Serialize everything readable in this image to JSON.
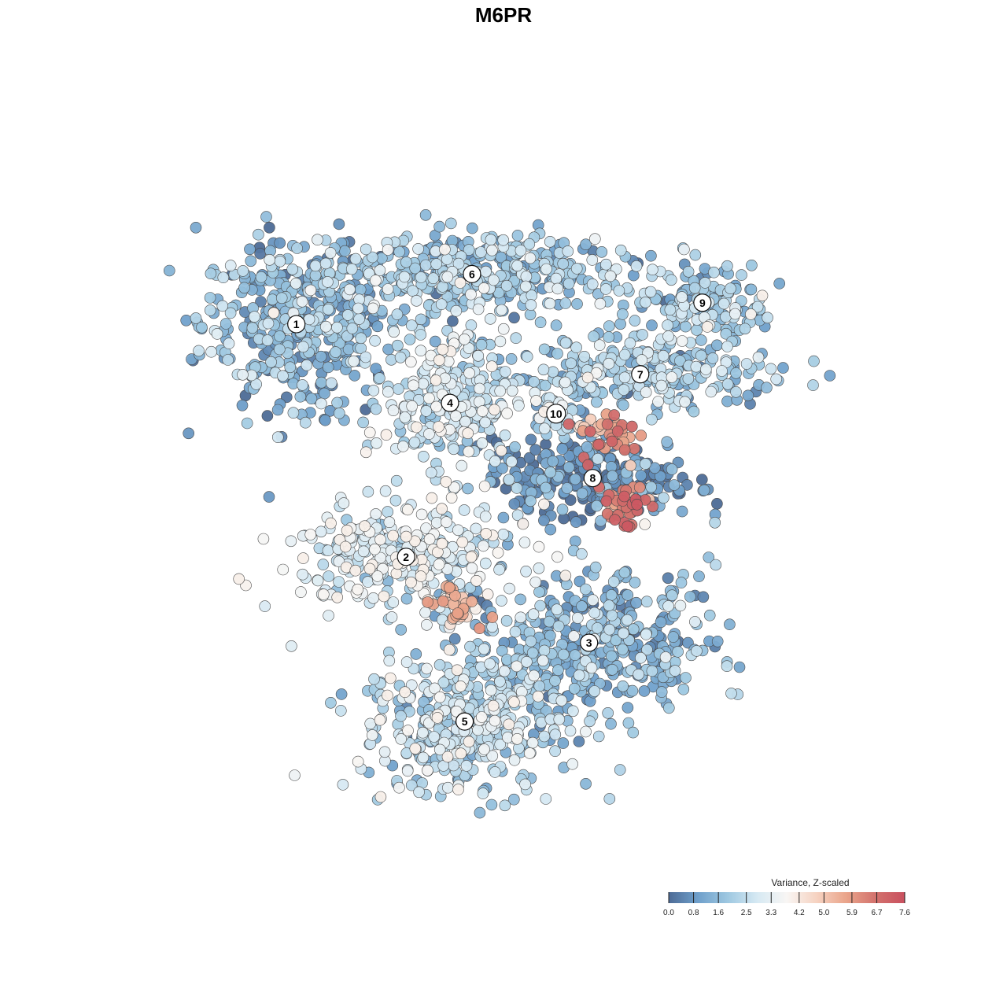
{
  "chart_data": {
    "type": "scatter",
    "title": "M6PR",
    "xlabel": "",
    "ylabel": "",
    "grid": false,
    "legend": {
      "title": "Variance, Z-scaled",
      "position": "bottom-right",
      "ticks": [
        "0.0",
        "0.8",
        "1.6",
        "2.5",
        "3.3",
        "4.2",
        "5.0",
        "5.9",
        "6.7",
        "7.6"
      ],
      "range": [
        0.0,
        7.6
      ],
      "colors": [
        "#4d6b96",
        "#6fa0cb",
        "#9ec8e1",
        "#d6e9f3",
        "#f8f6f4",
        "#f6d3c2",
        "#eaa58b",
        "#d3726d",
        "#c9505f"
      ]
    },
    "clusters": [
      {
        "label": "1",
        "x": -6.2,
        "y": 4.9,
        "spread_x": 1.3,
        "spread_y": 1.2,
        "mean_value": 1.5,
        "density": 420
      },
      {
        "label": "6",
        "x": -1.4,
        "y": 6.3,
        "spread_x": 2.2,
        "spread_y": 0.6,
        "mean_value": 1.8,
        "density": 420
      },
      {
        "label": "4",
        "x": -2.0,
        "y": 2.7,
        "spread_x": 0.9,
        "spread_y": 0.9,
        "mean_value": 2.6,
        "density": 260
      },
      {
        "label": "10",
        "x": 0.9,
        "y": 2.4,
        "spread_x": 0.3,
        "spread_y": 0.4,
        "mean_value": 2.2,
        "density": 40
      },
      {
        "label": "9",
        "x": 4.9,
        "y": 5.5,
        "spread_x": 1.0,
        "spread_y": 0.6,
        "mean_value": 2.0,
        "density": 140
      },
      {
        "label": "7",
        "x": 3.2,
        "y": 3.5,
        "spread_x": 1.9,
        "spread_y": 0.5,
        "mean_value": 1.9,
        "density": 260
      },
      {
        "label": "8",
        "x": 1.9,
        "y": 0.6,
        "spread_x": 1.4,
        "spread_y": 0.6,
        "mean_value": 0.6,
        "density": 260
      },
      {
        "label": "2",
        "x": -3.2,
        "y": -1.6,
        "spread_x": 1.6,
        "spread_y": 0.7,
        "mean_value": 3.0,
        "density": 320
      },
      {
        "label": "3",
        "x": 1.8,
        "y": -4.0,
        "spread_x": 1.7,
        "spread_y": 1.0,
        "mean_value": 1.4,
        "density": 420
      },
      {
        "label": "5",
        "x": -1.6,
        "y": -6.2,
        "spread_x": 1.4,
        "spread_y": 1.0,
        "mean_value": 2.4,
        "density": 420
      }
    ],
    "hotspots": [
      {
        "x": -1.8,
        "y": -3.0,
        "value": 6.0
      },
      {
        "x": 2.8,
        "y": -0.2,
        "value": 7.4
      },
      {
        "x": 2.3,
        "y": 1.8,
        "value": 7.3
      }
    ],
    "xlim": [
      -10,
      10
    ],
    "ylim": [
      -10,
      10
    ]
  }
}
